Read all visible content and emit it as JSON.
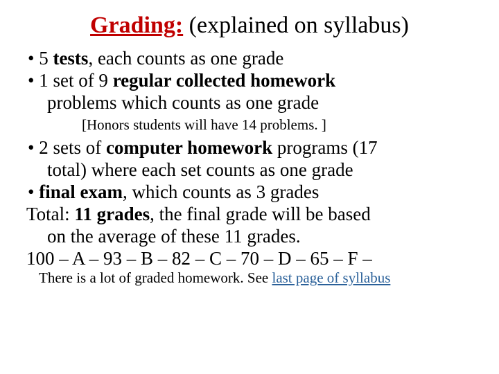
{
  "title": {
    "main": "Grading:",
    "suffix": " (explained on syllabus)",
    "main_color": "#c00000"
  },
  "bullets": {
    "b1_a": "5 ",
    "b1_b": "tests",
    "b1_c": ", each counts as one grade",
    "b2_a": "1 set of 9 ",
    "b2_b": "regular collected homework",
    "b2_c": "problems which counts as one grade",
    "subnote": "[Honors students will have 14 problems. ]",
    "b3_a": "2 sets of ",
    "b3_b": "computer homework",
    "b3_c": " programs (17",
    "b3_cont": "total) where each set counts as one grade",
    "b4_a": "final exam",
    "b4_b": ", which counts as 3 grades"
  },
  "total_a": "Total:  ",
  "total_b": "11 grades",
  "total_c": ", the final grade will be based",
  "total_cont": "on the average of these 11 grades.",
  "scale": "100 – A – 93 – B – 82 – C – 70 – D – 65 – F –",
  "foot_a": "There is a lot of graded homework.  See ",
  "foot_link": "last page of syllabus"
}
